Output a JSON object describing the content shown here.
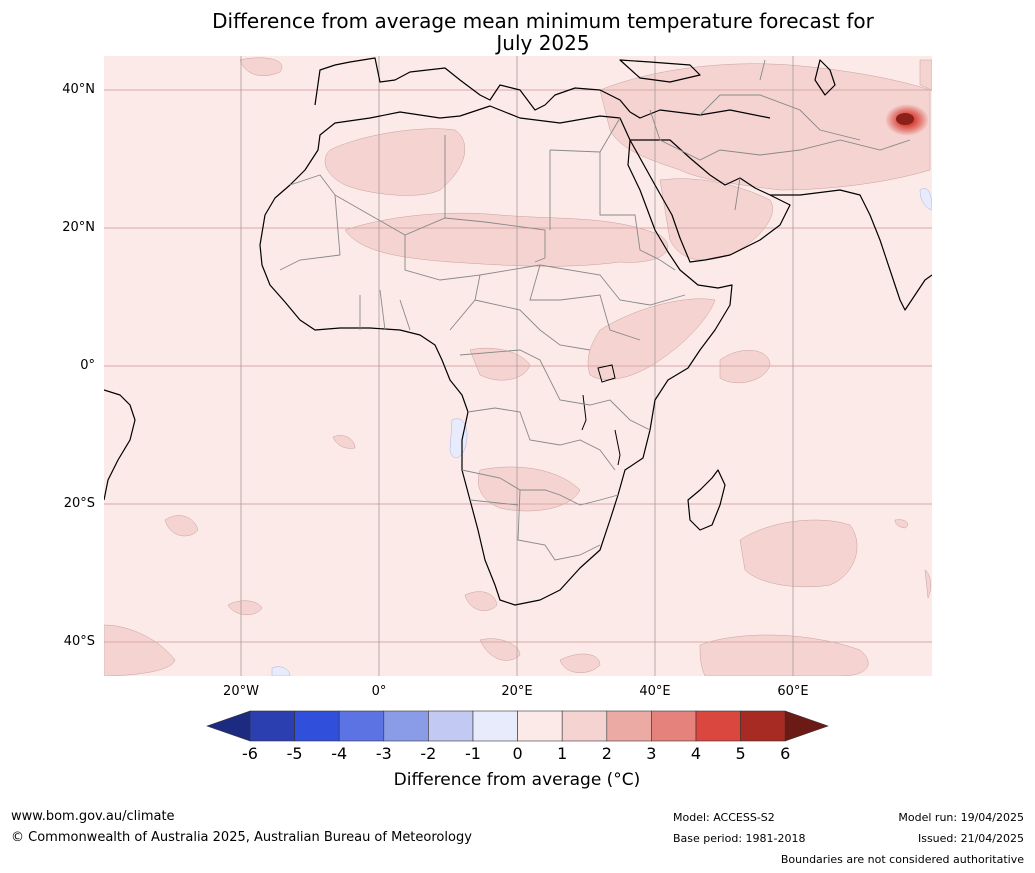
{
  "title_line1": "Difference from average mean minimum temperature forecast for",
  "title_line2": "July 2025",
  "map": {
    "lat_labels": [
      "40°N",
      "20°N",
      "0°",
      "20°S",
      "40°S"
    ],
    "lon_labels": [
      "20°W",
      "0°",
      "20°E",
      "40°E",
      "60°E"
    ],
    "hotspot_region": "Himalaya / western Tibetan Plateau (~6°C above average)"
  },
  "colorbar": {
    "ticks": [
      "-6",
      "-5",
      "-4",
      "-3",
      "-2",
      "-1",
      "0",
      "1",
      "2",
      "3",
      "4",
      "5",
      "6"
    ],
    "colors": [
      "#1c2b80",
      "#2b3fb0",
      "#3050dc",
      "#5c74e3",
      "#8a9be8",
      "#c2c9f2",
      "#e7ebfb",
      "#fbeae8",
      "#f4d3d1",
      "#ecaaa5",
      "#e5827c",
      "#d9473f",
      "#a72b22",
      "#6b1a15"
    ],
    "label": "Difference from average (°C)"
  },
  "footer": {
    "website": "www.bom.gov.au/climate",
    "copyright": "© Commonwealth of Australia 2025, Australian Bureau of Meteorology",
    "model": "Model: ACCESS-S2",
    "base_period": "Base period: 1981-2018",
    "model_run": "Model run: 19/04/2025",
    "issued": "Issued: 21/04/2025",
    "disclaimer": "Boundaries are not considered authoritative"
  }
}
